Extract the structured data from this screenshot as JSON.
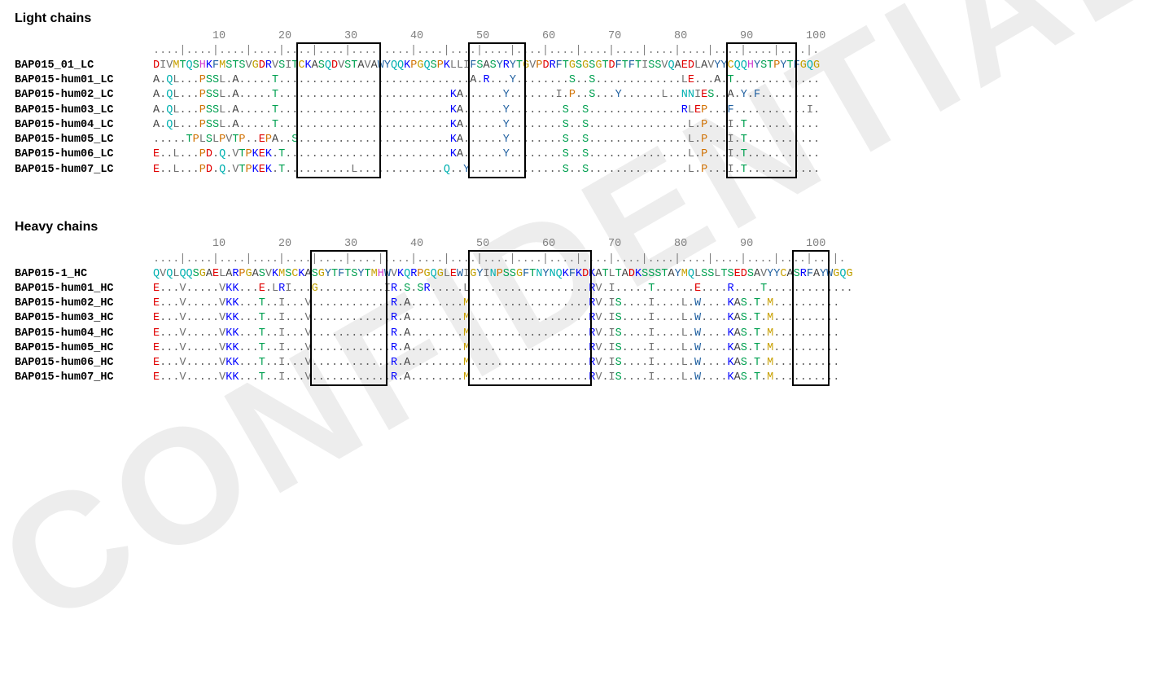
{
  "watermark": "CONFIDENTIAL",
  "charWidth": 8.11,
  "aaColors": {
    "D": "#e00000",
    "E": "#e00000",
    "C": "#c8a000",
    "M": "#c8a000",
    "K": "#0000ff",
    "R": "#0000ff",
    "S": "#00a050",
    "T": "#00a050",
    "F": "#2060a0",
    "Y": "#2060a0",
    "W": "#2060a0",
    "N": "#00b0b0",
    "Q": "#00b0b0",
    "G": "#c0a000",
    "L": "#707070",
    "V": "#707070",
    "I": "#707070",
    "A": "#404040",
    "H": "#d040d0",
    "P": "#d07000",
    ".": "#606060"
  },
  "light": {
    "title": "Light chains",
    "rulerNums": "         10        20        30        40        50        60        70        80        90        100",
    "rulerTicks": "....|....|....|....|....|....|....|....|....|....|....|....|....|....|....|....|....|....|....|....|.",
    "rows": [
      {
        "label": "BAP015_01_LC",
        "seq": "DIVMTQSHKFMSTSVGDRVSITCKASQDVSTAVAWYQQKPGQSPKLLIFSASYRYTGVPDRFTGSGSGTDFTFTISSVQAEDLAVYYCQQHYSTPYTFGQG"
      },
      {
        "label": "BAP015-hum01_LC",
        "seq": "A.QL...PSSL.A.....T.............................A.R...Y........S..S.............LE...A.T............."
      },
      {
        "label": "BAP015-hum02_LC",
        "seq": "A.QL...PSSL.A.....T..........................KA......Y.......I.P..S...Y......L..NNIES..A.Y.F........."
      },
      {
        "label": "BAP015-hum03_LC",
        "seq": "A.QL...PSSL.A.....T..........................KA......Y........S..S..............RLEP...F...........I."
      },
      {
        "label": "BAP015-hum04_LC",
        "seq": "A.QL...PSSL.A.....T..........................KA......Y........S..S...............L.P...I.T..........."
      },
      {
        "label": "BAP015-hum05_LC",
        "seq": ".....TPLSLPVTP..EPA..S.......................KA......Y........S..S...............L.P...I.T..........."
      },
      {
        "label": "BAP015-hum06_LC",
        "seq": "E..L...PD.Q.VTPKEK.T.........................KA......Y........S..S...............L.P...I.T..........."
      },
      {
        "label": "BAP015-hum07_LC",
        "seq": "E..L...PD.Q.VTPKEK.T..........L.............Q..Y..............S..S...............L.P...I.T..........."
      }
    ],
    "boxes": [
      {
        "start": 23,
        "end": 34
      },
      {
        "start": 49,
        "end": 56
      },
      {
        "start": 88,
        "end": 97
      }
    ]
  },
  "heavy": {
    "title": "Heavy chains",
    "rulerNums": "         10        20        30        40        50        60        70        80        90        100",
    "rulerTicks": "....|....|....|....|....|....|....|....|....|....|....|....|....|....|....|....|....|....|....|....|...|.",
    "rows": [
      {
        "label": "BAP015-1_HC",
        "seq": "QVQLQQSGAELARPGASVKMSCKASGYTFTSYTMHWVKQRPGQGLEWIGYINPSSGFTNYNQKFKDKATLTADKSSSTAYMQLSSLTSEDSAVYYCASRFAYWGQG"
      },
      {
        "label": "BAP015-hum01_HC",
        "seq": "E...V.....VKK...E.LRI...G..........IR.S.SR.....L..................RV.I.....T......E....R....T............."
      },
      {
        "label": "BAP015-hum02_HC",
        "seq": "E...V.....VKK...T..I...V............R.A........M..................RV.IS....I....L.W....KAS.T.M.........."
      },
      {
        "label": "BAP015-hum03_HC",
        "seq": "E...V.....VKK...T..I...V............R.A........M..................RV.IS....I....L.W....KAS.T.M.........."
      },
      {
        "label": "BAP015-hum04_HC",
        "seq": "E...V.....VKK...T..I...V............R.A........M..................RV.IS....I....L.W....KAS.T.M.........."
      },
      {
        "label": "BAP015-hum05_HC",
        "seq": "E...V.....VKK...T..I...V............R.A........M..................RV.IS....I....L.W....KAS.T.M.........."
      },
      {
        "label": "BAP015-hum06_HC",
        "seq": "E...V.....VKK...T..I...V............R.A........M..................RV.IS....I....L.W....KAS.T.M.........."
      },
      {
        "label": "BAP015-hum07_HC",
        "seq": "E...V.....VKK...T..I...V............R.A........M..................RV.IS....I....L.W....KAS.T.M.........."
      }
    ],
    "boxes": [
      {
        "start": 25,
        "end": 35
      },
      {
        "start": 49,
        "end": 66
      },
      {
        "start": 98,
        "end": 102
      }
    ]
  }
}
